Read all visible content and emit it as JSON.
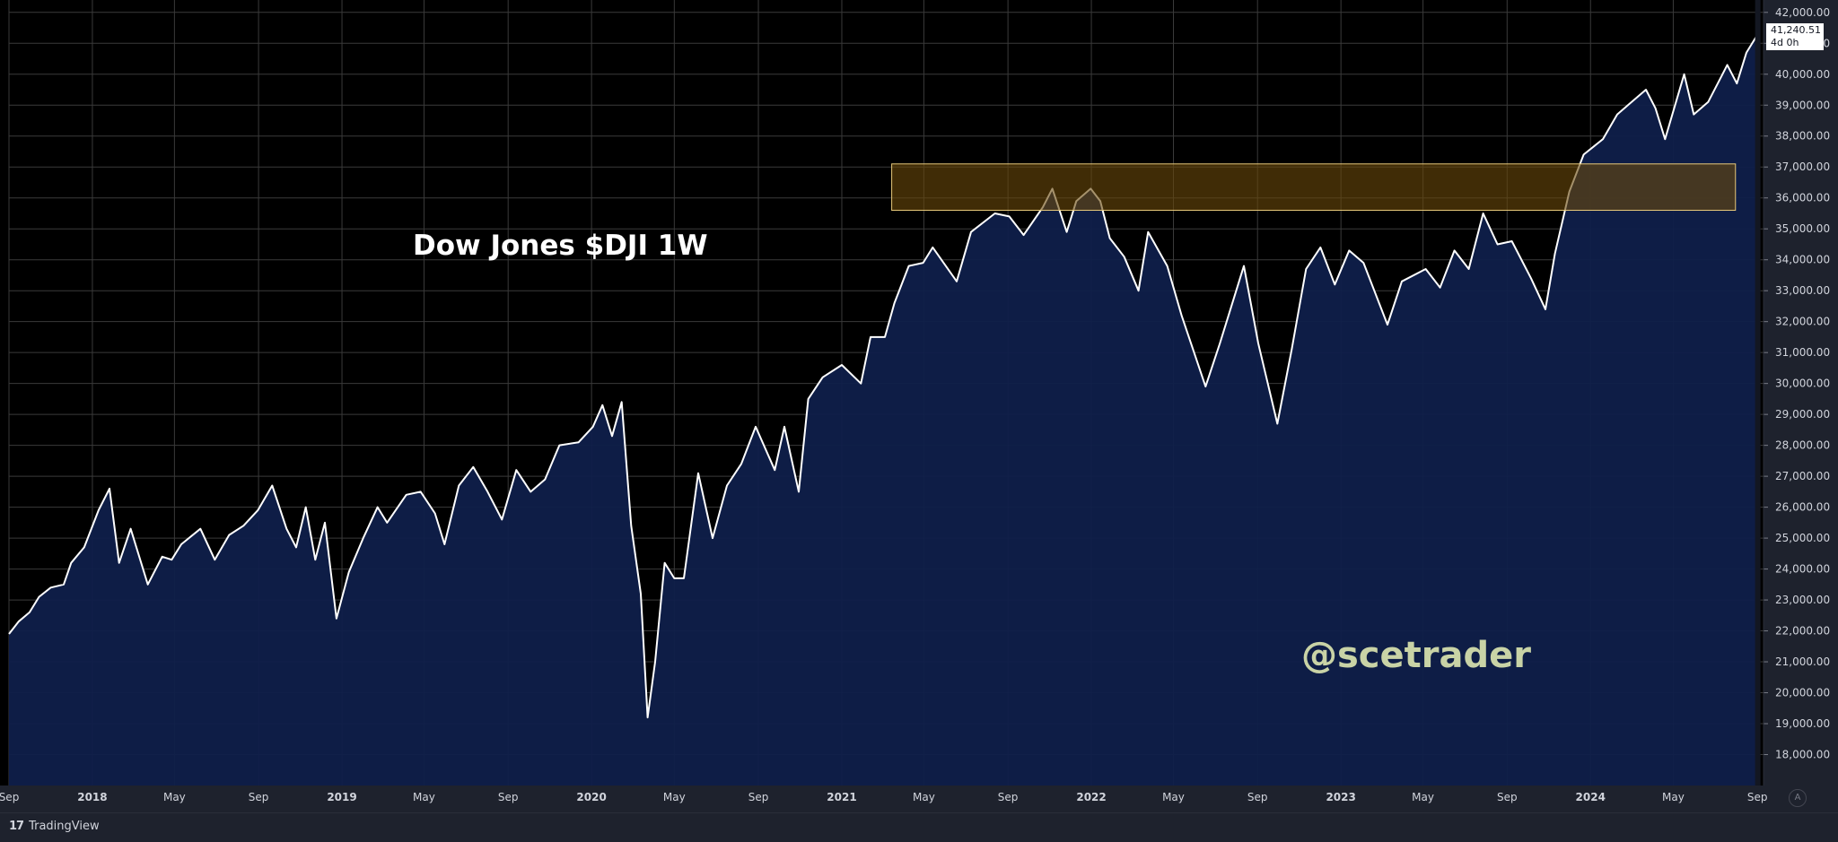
{
  "title": "Dow Jones $DJI 1W",
  "watermark": "@scetrader",
  "price_badge": {
    "price": "41,240.51",
    "countdown": "4d 0h"
  },
  "footer": {
    "brand": "TradingView",
    "logo_glyph": "17",
    "auto_label": "A"
  },
  "colors": {
    "background": "#000000",
    "panel": "#1e222d",
    "grid": "#3a3a3a",
    "line": "#ffffff",
    "area": "#0f1f4a",
    "zone_fill": "#6b4a0a",
    "zone_border": "#e8c97a"
  },
  "chart_data": {
    "type": "area",
    "title": "Dow Jones $DJI 1W",
    "xlabel": "",
    "ylabel": "",
    "ylim": [
      17000,
      42400
    ],
    "x_range": [
      "2017-09-01",
      "2024-09-10"
    ],
    "y_ticks": [
      "18,000.00",
      "19,000.00",
      "20,000.00",
      "21,000.00",
      "22,000.00",
      "23,000.00",
      "24,000.00",
      "25,000.00",
      "26,000.00",
      "27,000.00",
      "28,000.00",
      "29,000.00",
      "30,000.00",
      "31,000.00",
      "32,000.00",
      "33,000.00",
      "34,000.00",
      "35,000.00",
      "36,000.00",
      "37,000.00",
      "38,000.00",
      "39,000.00",
      "40,000.00",
      "41,000.00",
      "42,000.00"
    ],
    "x_ticks": [
      {
        "date": "2017-09-01",
        "label": "Sep"
      },
      {
        "date": "2018-01-01",
        "label": "2018"
      },
      {
        "date": "2018-05-01",
        "label": "May"
      },
      {
        "date": "2018-09-01",
        "label": "Sep"
      },
      {
        "date": "2019-01-01",
        "label": "2019"
      },
      {
        "date": "2019-05-01",
        "label": "May"
      },
      {
        "date": "2019-09-01",
        "label": "Sep"
      },
      {
        "date": "2020-01-01",
        "label": "2020"
      },
      {
        "date": "2020-05-01",
        "label": "May"
      },
      {
        "date": "2020-09-01",
        "label": "Sep"
      },
      {
        "date": "2021-01-01",
        "label": "2021"
      },
      {
        "date": "2021-05-01",
        "label": "May"
      },
      {
        "date": "2021-09-01",
        "label": "Sep"
      },
      {
        "date": "2022-01-01",
        "label": "2022"
      },
      {
        "date": "2022-05-01",
        "label": "May"
      },
      {
        "date": "2022-09-01",
        "label": "Sep"
      },
      {
        "date": "2023-01-01",
        "label": "2023"
      },
      {
        "date": "2023-05-01",
        "label": "May"
      },
      {
        "date": "2023-09-01",
        "label": "Sep"
      },
      {
        "date": "2024-01-01",
        "label": "2024"
      },
      {
        "date": "2024-05-01",
        "label": "May"
      },
      {
        "date": "2024-09-01",
        "label": "Sep"
      }
    ],
    "series": [
      {
        "points": [
          [
            "2017-09-01",
            21900
          ],
          [
            "2017-09-15",
            22300
          ],
          [
            "2017-10-01",
            22600
          ],
          [
            "2017-10-15",
            23100
          ],
          [
            "2017-11-01",
            23400
          ],
          [
            "2017-11-20",
            23500
          ],
          [
            "2017-12-01",
            24200
          ],
          [
            "2017-12-20",
            24700
          ],
          [
            "2018-01-10",
            25900
          ],
          [
            "2018-01-26",
            26600
          ],
          [
            "2018-02-09",
            24200
          ],
          [
            "2018-02-26",
            25300
          ],
          [
            "2018-03-23",
            23500
          ],
          [
            "2018-04-13",
            24400
          ],
          [
            "2018-04-27",
            24300
          ],
          [
            "2018-05-11",
            24800
          ],
          [
            "2018-06-08",
            25300
          ],
          [
            "2018-06-29",
            24300
          ],
          [
            "2018-07-20",
            25100
          ],
          [
            "2018-08-10",
            25400
          ],
          [
            "2018-08-31",
            25900
          ],
          [
            "2018-09-21",
            26700
          ],
          [
            "2018-10-12",
            25300
          ],
          [
            "2018-10-26",
            24700
          ],
          [
            "2018-11-09",
            26000
          ],
          [
            "2018-11-23",
            24300
          ],
          [
            "2018-12-07",
            25500
          ],
          [
            "2018-12-24",
            22400
          ],
          [
            "2019-01-11",
            23900
          ],
          [
            "2019-02-01",
            25000
          ],
          [
            "2019-02-22",
            26000
          ],
          [
            "2019-03-08",
            25500
          ],
          [
            "2019-04-05",
            26400
          ],
          [
            "2019-04-26",
            26500
          ],
          [
            "2019-05-17",
            25800
          ],
          [
            "2019-05-31",
            24800
          ],
          [
            "2019-06-21",
            26700
          ],
          [
            "2019-07-12",
            27300
          ],
          [
            "2019-08-02",
            26500
          ],
          [
            "2019-08-23",
            25600
          ],
          [
            "2019-09-13",
            27200
          ],
          [
            "2019-10-04",
            26500
          ],
          [
            "2019-10-25",
            26900
          ],
          [
            "2019-11-15",
            28000
          ],
          [
            "2019-12-13",
            28100
          ],
          [
            "2020-01-03",
            28600
          ],
          [
            "2020-01-17",
            29300
          ],
          [
            "2020-01-31",
            28300
          ],
          [
            "2020-02-14",
            29400
          ],
          [
            "2020-02-28",
            25400
          ],
          [
            "2020-03-13",
            23200
          ],
          [
            "2020-03-23",
            19200
          ],
          [
            "2020-04-03",
            21000
          ],
          [
            "2020-04-17",
            24200
          ],
          [
            "2020-05-01",
            23700
          ],
          [
            "2020-05-15",
            23700
          ],
          [
            "2020-06-05",
            27100
          ],
          [
            "2020-06-26",
            25000
          ],
          [
            "2020-07-17",
            26700
          ],
          [
            "2020-08-07",
            27400
          ],
          [
            "2020-08-28",
            28600
          ],
          [
            "2020-09-25",
            27200
          ],
          [
            "2020-10-09",
            28600
          ],
          [
            "2020-10-30",
            26500
          ],
          [
            "2020-11-13",
            29500
          ],
          [
            "2020-12-04",
            30200
          ],
          [
            "2021-01-01",
            30600
          ],
          [
            "2021-01-29",
            30000
          ],
          [
            "2021-02-12",
            31500
          ],
          [
            "2021-03-05",
            31500
          ],
          [
            "2021-03-19",
            32600
          ],
          [
            "2021-04-09",
            33800
          ],
          [
            "2021-04-30",
            33900
          ],
          [
            "2021-05-14",
            34400
          ],
          [
            "2021-06-18",
            33300
          ],
          [
            "2021-07-09",
            34900
          ],
          [
            "2021-08-13",
            35500
          ],
          [
            "2021-09-03",
            35400
          ],
          [
            "2021-09-24",
            34800
          ],
          [
            "2021-10-22",
            35700
          ],
          [
            "2021-11-05",
            36300
          ],
          [
            "2021-11-26",
            34900
          ],
          [
            "2021-12-10",
            35900
          ],
          [
            "2021-12-31",
            36300
          ],
          [
            "2022-01-14",
            35900
          ],
          [
            "2022-01-28",
            34700
          ],
          [
            "2022-02-18",
            34100
          ],
          [
            "2022-03-11",
            33000
          ],
          [
            "2022-03-25",
            34900
          ],
          [
            "2022-04-22",
            33800
          ],
          [
            "2022-05-13",
            32200
          ],
          [
            "2022-06-17",
            29900
          ],
          [
            "2022-07-08",
            31300
          ],
          [
            "2022-08-12",
            33800
          ],
          [
            "2022-09-02",
            31300
          ],
          [
            "2022-09-30",
            28700
          ],
          [
            "2022-10-21",
            31100
          ],
          [
            "2022-11-11",
            33700
          ],
          [
            "2022-12-02",
            34400
          ],
          [
            "2022-12-23",
            33200
          ],
          [
            "2023-01-13",
            34300
          ],
          [
            "2023-02-03",
            33900
          ],
          [
            "2023-03-10",
            31900
          ],
          [
            "2023-03-31",
            33300
          ],
          [
            "2023-05-05",
            33700
          ],
          [
            "2023-05-26",
            33100
          ],
          [
            "2023-06-16",
            34300
          ],
          [
            "2023-07-07",
            33700
          ],
          [
            "2023-07-28",
            35500
          ],
          [
            "2023-08-18",
            34500
          ],
          [
            "2023-09-08",
            34600
          ],
          [
            "2023-10-06",
            33400
          ],
          [
            "2023-10-27",
            32400
          ],
          [
            "2023-11-10",
            34200
          ],
          [
            "2023-12-01",
            36200
          ],
          [
            "2023-12-22",
            37400
          ],
          [
            "2024-01-19",
            37900
          ],
          [
            "2024-02-09",
            38700
          ],
          [
            "2024-03-01",
            39100
          ],
          [
            "2024-03-22",
            39500
          ],
          [
            "2024-04-05",
            38900
          ],
          [
            "2024-04-19",
            37900
          ],
          [
            "2024-05-17",
            40000
          ],
          [
            "2024-05-31",
            38700
          ],
          [
            "2024-06-21",
            39100
          ],
          [
            "2024-07-12",
            40000
          ],
          [
            "2024-07-19",
            40300
          ],
          [
            "2024-08-02",
            39700
          ],
          [
            "2024-08-16",
            40700
          ],
          [
            "2024-08-30",
            41200
          ]
        ]
      }
    ],
    "zone": {
      "x0": "2021-03-15",
      "x1": "2024-07-31",
      "y0": 35600,
      "y1": 37100
    }
  }
}
